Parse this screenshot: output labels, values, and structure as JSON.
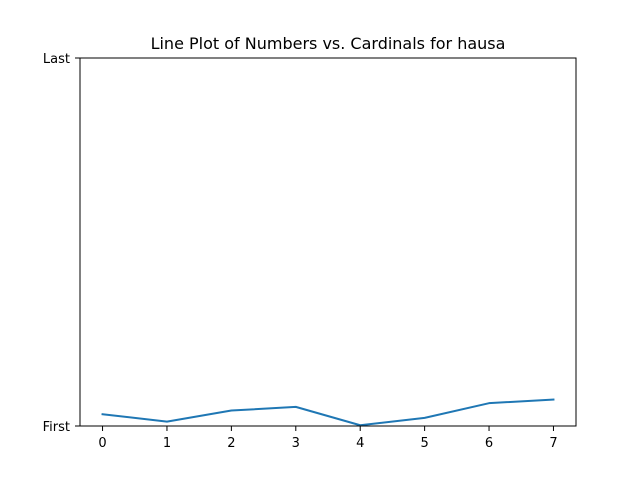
{
  "chart_data": {
    "type": "line",
    "title": "Line Plot of Numbers vs. Cardinals for hausa",
    "xlabel": "",
    "ylabel": "",
    "x": [
      0,
      1,
      2,
      3,
      4,
      5,
      6,
      7
    ],
    "x_ticks": [
      "0",
      "1",
      "2",
      "3",
      "4",
      "5",
      "6",
      "7"
    ],
    "y_ticks": [
      "First",
      "Last"
    ],
    "xlim": [
      -0.35,
      7.35
    ],
    "ylim": [
      0,
      100
    ],
    "series": [
      {
        "color": "#1f77b4",
        "values": [
          3.2,
          1.2,
          4.2,
          5.2,
          0.2,
          2.2,
          6.2,
          7.2
        ]
      }
    ],
    "grid": false
  }
}
